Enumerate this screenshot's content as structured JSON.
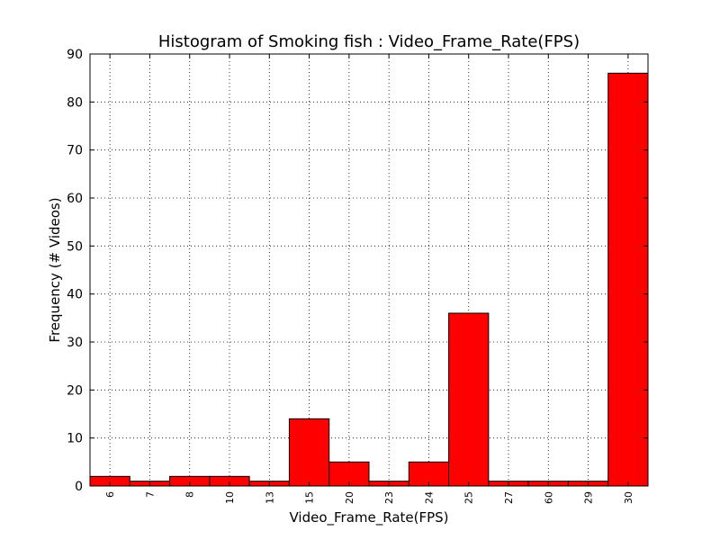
{
  "chart_data": {
    "type": "bar",
    "title": "Histogram of Smoking fish : Video_Frame_Rate(FPS)",
    "xlabel": "Video_Frame_Rate(FPS)",
    "ylabel": "Frequency (# Videos)",
    "categories": [
      "6",
      "7",
      "8",
      "10",
      "13",
      "15",
      "20",
      "23",
      "24",
      "25",
      "27",
      "60",
      "29",
      "30"
    ],
    "values": [
      2,
      1,
      2,
      2,
      1,
      14,
      5,
      1,
      5,
      36,
      1,
      1,
      1,
      86
    ],
    "ylim": [
      0,
      90
    ],
    "yticks": [
      "0",
      "10",
      "20",
      "30",
      "40",
      "50",
      "60",
      "70",
      "80",
      "90"
    ],
    "grid": true,
    "bar_color": "#ff0000",
    "edge_color": "#000000"
  }
}
